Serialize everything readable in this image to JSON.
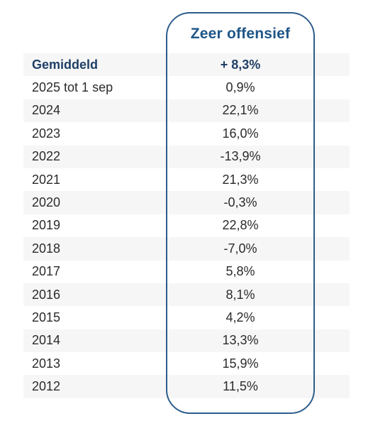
{
  "column_header": "Zeer offensief",
  "rows": [
    {
      "label": "Gemiddeld",
      "value": "+ 8,3%"
    },
    {
      "label": "2025 tot 1 sep",
      "value": "0,9%"
    },
    {
      "label": "2024",
      "value": "22,1%"
    },
    {
      "label": "2023",
      "value": "16,0%"
    },
    {
      "label": "2022",
      "value": "-13,9%"
    },
    {
      "label": "2021",
      "value": "21,3%"
    },
    {
      "label": "2020",
      "value": "-0,3%"
    },
    {
      "label": "2019",
      "value": "22,8%"
    },
    {
      "label": "2018",
      "value": "-7,0%"
    },
    {
      "label": "2017",
      "value": "5,8%"
    },
    {
      "label": "2016",
      "value": "8,1%"
    },
    {
      "label": "2015",
      "value": "4,2%"
    },
    {
      "label": "2014",
      "value": "13,3%"
    },
    {
      "label": "2013",
      "value": "15,9%"
    },
    {
      "label": "2012",
      "value": "11,5%"
    }
  ],
  "colors": {
    "accent": "#1f5587",
    "border": "#2d5d8c",
    "row_shade": "#f6f6f6",
    "text": "#2b2b2b"
  }
}
